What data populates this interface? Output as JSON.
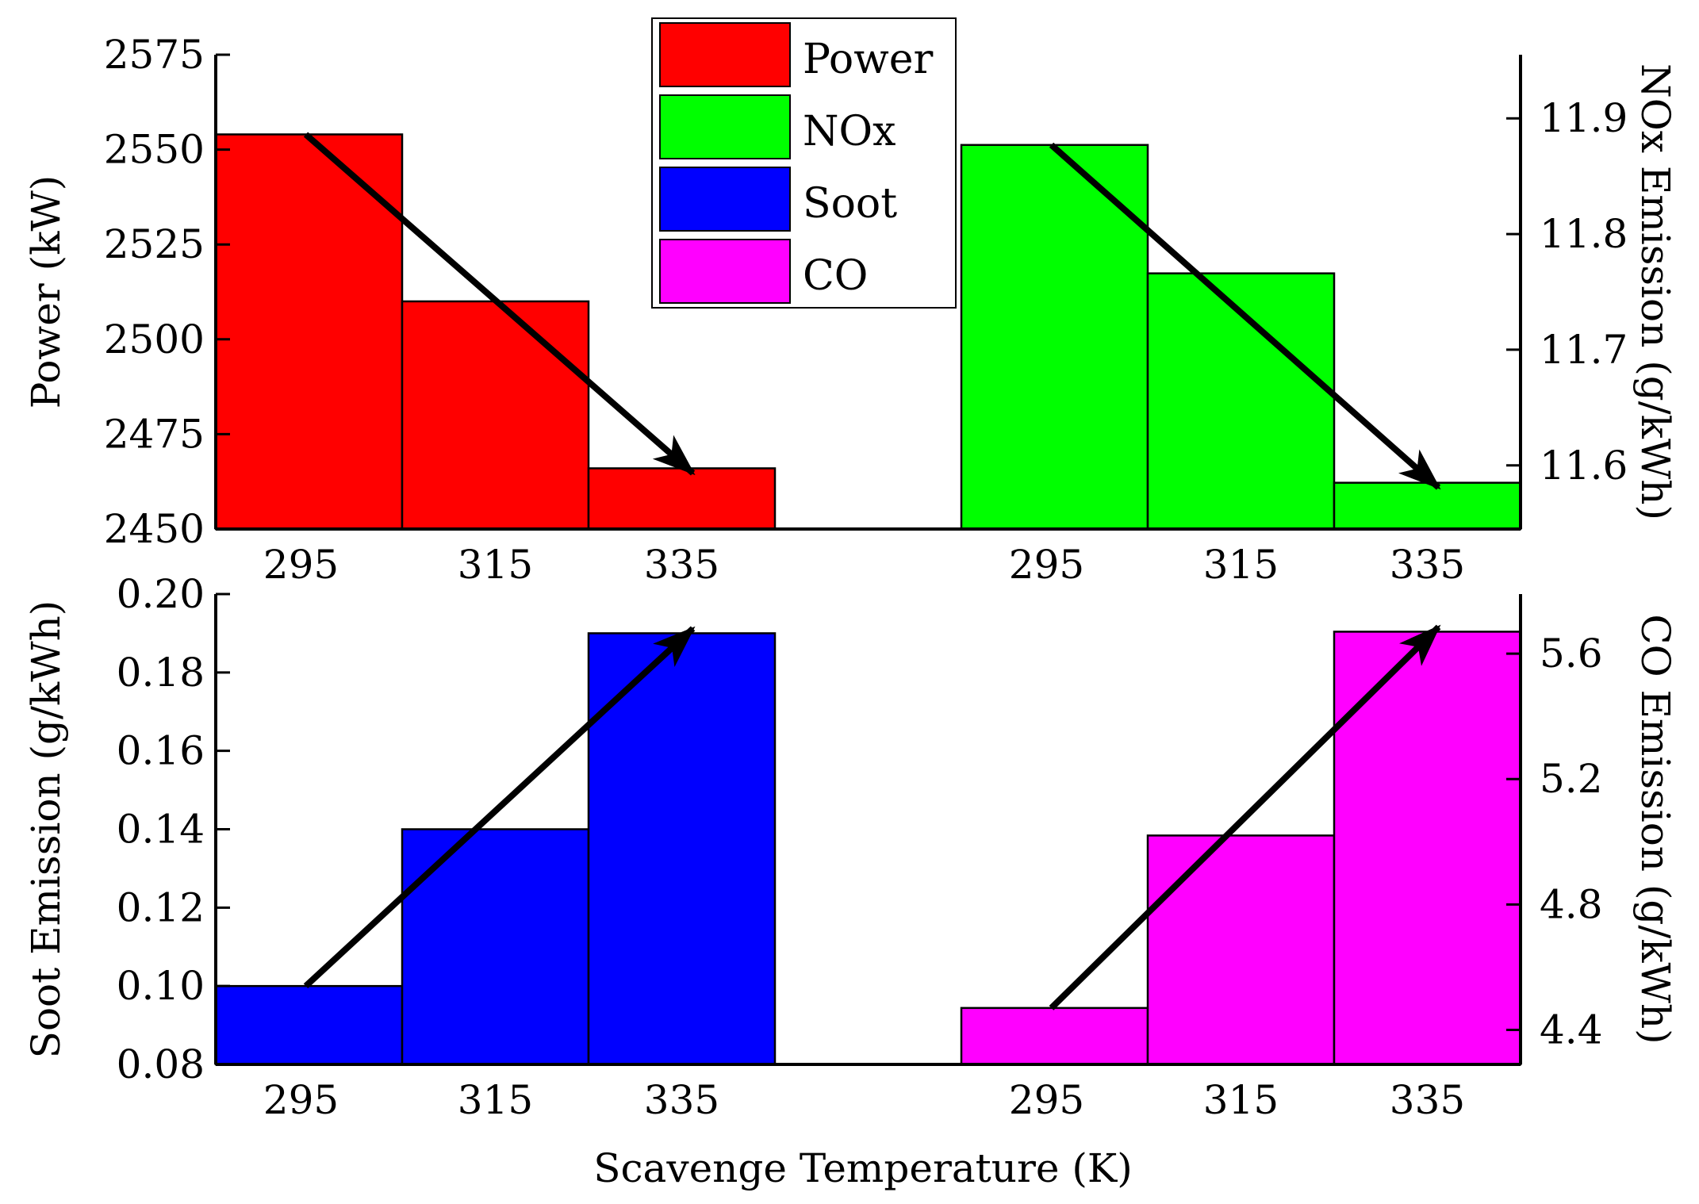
{
  "chart_data": {
    "type": "bar",
    "xlabel": "Scavenge Temperature (K)",
    "categories": [
      "295",
      "315",
      "335"
    ],
    "legend": [
      {
        "name": "Power",
        "color": "#ff0000"
      },
      {
        "name": "NOx",
        "color": "#00ff00"
      },
      {
        "name": "Soot",
        "color": "#0000ff"
      },
      {
        "name": "CO",
        "color": "#ff00ff"
      }
    ],
    "panels": [
      {
        "id": "power",
        "series": "Power",
        "ylabel": "Power (kW)",
        "axis_side": "left",
        "row": "top",
        "group": "left",
        "color": "#ff0000",
        "ylim": [
          2450,
          2575
        ],
        "yticks": [
          2450,
          2475,
          2500,
          2525,
          2550,
          2575
        ],
        "tick_labels": [
          "2450",
          "2475",
          "2500",
          "2525",
          "2550",
          "2575"
        ],
        "values": [
          2554,
          2510,
          2466
        ],
        "trend": "decrease"
      },
      {
        "id": "nox",
        "series": "NOx",
        "ylabel": "NOx Emission (g/kWh)",
        "axis_side": "right",
        "row": "top",
        "group": "right",
        "color": "#00ff00",
        "ylim": [
          11.545,
          11.955
        ],
        "yticks": [
          11.6,
          11.7,
          11.8,
          11.9
        ],
        "tick_labels": [
          "11.6",
          "11.7",
          "11.8",
          "11.9"
        ],
        "values": [
          11.877,
          11.766,
          11.585
        ],
        "trend": "decrease"
      },
      {
        "id": "soot",
        "series": "Soot",
        "ylabel": "Soot Emission (g/kWh)",
        "axis_side": "left",
        "row": "bottom",
        "group": "left",
        "color": "#0000ff",
        "ylim": [
          0.08,
          0.2
        ],
        "yticks": [
          0.08,
          0.1,
          0.12,
          0.14,
          0.16,
          0.18,
          0.2
        ],
        "tick_labels": [
          "0.08",
          "0.10",
          "0.12",
          "0.14",
          "0.16",
          "0.18",
          "0.20"
        ],
        "values": [
          0.1,
          0.14,
          0.19
        ],
        "trend": "increase"
      },
      {
        "id": "co",
        "series": "CO",
        "ylabel": "CO Emission (g/kWh)",
        "axis_side": "right",
        "row": "bottom",
        "group": "right",
        "color": "#ff00ff",
        "ylim": [
          4.29,
          5.79
        ],
        "yticks": [
          4.4,
          4.8,
          5.2,
          5.6
        ],
        "tick_labels": [
          "4.4",
          "4.8",
          "5.2",
          "5.6"
        ],
        "values": [
          4.47,
          5.02,
          5.67
        ],
        "trend": "increase"
      }
    ]
  }
}
